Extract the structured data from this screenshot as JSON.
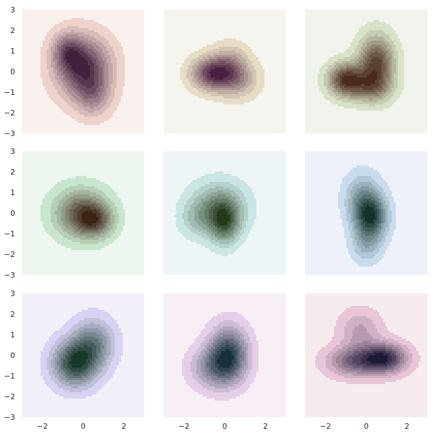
{
  "chart_data": {
    "type": "kde_grid",
    "rows": 3,
    "cols": 3,
    "xlim": [
      -3,
      3
    ],
    "ylim": [
      -3,
      3
    ],
    "grid": false,
    "shared_x_ticks": [
      "−2",
      "0",
      "2"
    ],
    "shared_y_ticks": [
      "3",
      "2",
      "1",
      "0",
      "−1",
      "−2",
      "−3"
    ],
    "levels": 9,
    "panels": [
      {
        "id": "r1c1",
        "bg": "#f8f1ee",
        "light": "#eed2cc",
        "dark": "#43203e",
        "blobs": [
          {
            "cx": 0.0,
            "cy": 0.2,
            "sx": 0.9,
            "sy": 1.0,
            "w": 1.0
          },
          {
            "cx": -0.8,
            "cy": 1.0,
            "sx": 0.5,
            "sy": 0.6,
            "w": 0.5
          },
          {
            "cx": 0.5,
            "cy": -1.2,
            "sx": 0.6,
            "sy": 0.7,
            "w": 0.4
          }
        ]
      },
      {
        "id": "r1c2",
        "bg": "#f5f4ee",
        "light": "#e7dcc4",
        "dark": "#4a2040",
        "blobs": [
          {
            "cx": -0.6,
            "cy": -0.1,
            "sx": 0.7,
            "sy": 0.55,
            "w": 1.0
          },
          {
            "cx": 0.6,
            "cy": -0.4,
            "sx": 0.7,
            "sy": 0.6,
            "w": 0.5
          },
          {
            "cx": 0.3,
            "cy": 0.5,
            "sx": 0.6,
            "sy": 0.6,
            "w": 0.35
          }
        ]
      },
      {
        "id": "r1c3",
        "bg": "#f0f4ec",
        "light": "#d8e2c8",
        "dark": "#4a2a1c",
        "blobs": [
          {
            "cx": -1.0,
            "cy": -0.4,
            "sx": 0.6,
            "sy": 0.55,
            "w": 1.0
          },
          {
            "cx": 0.5,
            "cy": 0.4,
            "sx": 0.6,
            "sy": 0.9,
            "w": 0.95
          },
          {
            "cx": 0.2,
            "cy": -0.8,
            "sx": 0.7,
            "sy": 0.5,
            "w": 0.5
          }
        ]
      },
      {
        "id": "r2c1",
        "bg": "#edf6ef",
        "light": "#c7e6cd",
        "dark": "#3c2316",
        "blobs": [
          {
            "cx": -0.1,
            "cy": 0.0,
            "sx": 0.9,
            "sy": 0.8,
            "w": 1.0
          },
          {
            "cx": 0.6,
            "cy": -0.4,
            "sx": 0.6,
            "sy": 0.55,
            "w": 0.7
          }
        ]
      },
      {
        "id": "r2c2",
        "bg": "#eef5f6",
        "light": "#cae6e4",
        "dark": "#263a1a",
        "blobs": [
          {
            "cx": 0.0,
            "cy": -0.5,
            "sx": 0.5,
            "sy": 0.7,
            "w": 1.0
          },
          {
            "cx": -0.3,
            "cy": 0.3,
            "sx": 0.9,
            "sy": 0.8,
            "w": 0.8
          },
          {
            "cx": -1.3,
            "cy": -0.3,
            "sx": 0.6,
            "sy": 0.6,
            "w": 0.35
          }
        ]
      },
      {
        "id": "r2c3",
        "bg": "#eef1f9",
        "light": "#c8dced",
        "dark": "#13332c",
        "blobs": [
          {
            "cx": 0.2,
            "cy": -0.2,
            "sx": 0.55,
            "sy": 0.75,
            "w": 1.0
          },
          {
            "cx": -0.2,
            "cy": 0.8,
            "sx": 0.6,
            "sy": 0.8,
            "w": 0.4
          },
          {
            "cx": 0.0,
            "cy": -1.6,
            "sx": 0.5,
            "sy": 0.6,
            "w": 0.3
          }
        ]
      },
      {
        "id": "r3c1",
        "bg": "#f2eff9",
        "light": "#d8d3f2",
        "dark": "#17382a",
        "blobs": [
          {
            "cx": -0.4,
            "cy": -0.4,
            "sx": 0.75,
            "sy": 0.75,
            "w": 1.0
          },
          {
            "cx": 0.5,
            "cy": 0.6,
            "sx": 0.7,
            "sy": 0.8,
            "w": 0.6
          }
        ]
      },
      {
        "id": "r3c2",
        "bg": "#f7eef6",
        "light": "#e5cfe8",
        "dark": "#16303c",
        "blobs": [
          {
            "cx": 0.2,
            "cy": 0.1,
            "sx": 0.65,
            "sy": 0.9,
            "w": 1.0
          },
          {
            "cx": -0.5,
            "cy": -0.6,
            "sx": 0.8,
            "sy": 0.7,
            "w": 0.6
          }
        ]
      },
      {
        "id": "r3c3",
        "bg": "#f6ecef",
        "light": "#e9c5d8",
        "dark": "#1f1938",
        "blobs": [
          {
            "cx": 0.9,
            "cy": -0.15,
            "sx": 0.75,
            "sy": 0.5,
            "w": 1.0
          },
          {
            "cx": -0.6,
            "cy": -0.3,
            "sx": 0.9,
            "sy": 0.5,
            "w": 0.7
          },
          {
            "cx": -0.3,
            "cy": 1.2,
            "sx": 0.7,
            "sy": 0.7,
            "w": 0.35
          }
        ]
      }
    ]
  }
}
